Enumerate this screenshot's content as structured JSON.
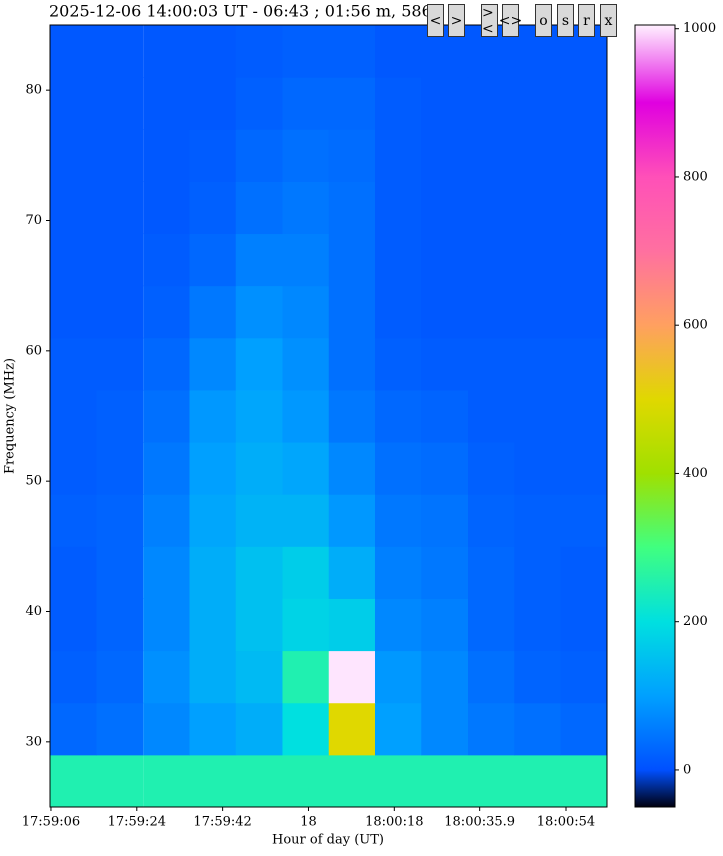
{
  "chart_data": {
    "type": "heatmap",
    "title": "2025-12-06 14:00:03 UT - 06:43 ; 01:56 m, 586",
    "xlabel": "Hour of day (UT)",
    "ylabel": "Frequency (MHz)",
    "x": [
      64750.7,
      64760.4,
      64770.2,
      64779.9,
      64789.6,
      64799.4,
      64809.1,
      64818.8,
      64828.5,
      64838.3,
      64848.0,
      64857.7
    ],
    "y": [
      27,
      31,
      35,
      39,
      43,
      47,
      51,
      55,
      59,
      63,
      67,
      71,
      75,
      79,
      83
    ],
    "z": [
      [
        250,
        250,
        250,
        250,
        250,
        250,
        250,
        250,
        250,
        250,
        250,
        250
      ],
      [
        30,
        40,
        70,
        100,
        120,
        200,
        500,
        100,
        70,
        50,
        40,
        30
      ],
      [
        20,
        30,
        80,
        120,
        140,
        250,
        1000,
        90,
        70,
        40,
        25,
        20
      ],
      [
        15,
        25,
        70,
        120,
        150,
        180,
        170,
        70,
        60,
        30,
        20,
        15
      ],
      [
        15,
        25,
        70,
        120,
        150,
        170,
        120,
        60,
        50,
        30,
        20,
        15
      ],
      [
        20,
        25,
        60,
        110,
        130,
        130,
        90,
        50,
        45,
        25,
        20,
        20
      ],
      [
        15,
        20,
        50,
        100,
        120,
        110,
        70,
        40,
        35,
        20,
        15,
        15
      ],
      [
        15,
        20,
        40,
        90,
        110,
        90,
        50,
        30,
        25,
        15,
        15,
        15
      ],
      [
        15,
        15,
        30,
        70,
        100,
        80,
        40,
        20,
        15,
        15,
        15,
        15
      ],
      [
        10,
        10,
        20,
        50,
        80,
        70,
        40,
        15,
        10,
        10,
        10,
        10
      ],
      [
        10,
        10,
        15,
        30,
        60,
        60,
        40,
        15,
        10,
        10,
        10,
        10
      ],
      [
        10,
        10,
        10,
        20,
        40,
        50,
        40,
        15,
        10,
        10,
        10,
        10
      ],
      [
        10,
        10,
        10,
        15,
        30,
        40,
        35,
        15,
        10,
        10,
        10,
        10
      ],
      [
        10,
        10,
        10,
        10,
        20,
        30,
        30,
        15,
        10,
        10,
        10,
        10
      ],
      [
        10,
        10,
        10,
        10,
        15,
        20,
        20,
        10,
        10,
        10,
        10,
        10
      ]
    ],
    "xlim": [
      64745.8,
      64862.6
    ],
    "xticks": [
      {
        "value": 64746,
        "label": "17:59:06"
      },
      {
        "value": 64764,
        "label": "17:59:24"
      },
      {
        "value": 64782,
        "label": "17:59:42"
      },
      {
        "value": 64800,
        "label": "18"
      },
      {
        "value": 64818,
        "label": "18:00:18"
      },
      {
        "value": 64835.9,
        "label": "18:00:35.9"
      },
      {
        "value": 64854,
        "label": "18:00:54"
      }
    ],
    "ylim": [
      25,
      85
    ],
    "yticks": [
      30,
      40,
      50,
      60,
      70,
      80
    ],
    "clim": [
      -50,
      1005
    ],
    "cticks": [
      0,
      200,
      400,
      600,
      800,
      1000
    ],
    "colorscale": [
      [
        -50,
        "#000010"
      ],
      [
        0,
        "#0050ff"
      ],
      [
        100,
        "#00a0ff"
      ],
      [
        200,
        "#00e0e0"
      ],
      [
        300,
        "#40ff80"
      ],
      [
        400,
        "#a0e000"
      ],
      [
        500,
        "#e0d800"
      ],
      [
        600,
        "#ffa060"
      ],
      [
        700,
        "#ff70a0"
      ],
      [
        800,
        "#ff50b8"
      ],
      [
        900,
        "#e000e0"
      ],
      [
        1005,
        "#fff0ff"
      ]
    ]
  },
  "buttons": [
    "<",
    ">",
    "><",
    "<>",
    "o",
    "s",
    "r",
    "x"
  ]
}
